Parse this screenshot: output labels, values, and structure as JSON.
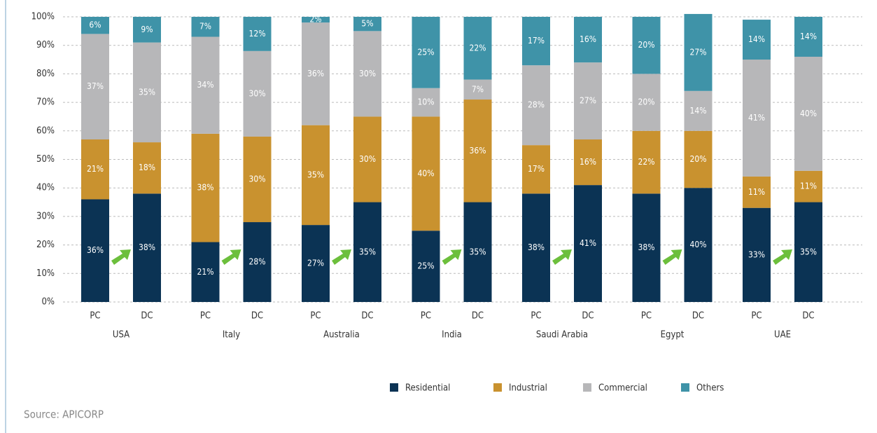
{
  "chart_data": {
    "type": "stacked_bar",
    "categories": [
      "PC",
      "DC",
      "PC",
      "DC",
      "PC",
      "DC",
      "PC",
      "DC",
      "PC",
      "DC",
      "PC",
      "DC",
      "PC",
      "DC"
    ],
    "groups": [
      "USA",
      "Italy",
      "Australia",
      "India",
      "Saudi Arabia",
      "Egypt",
      "UAE"
    ],
    "series": [
      {
        "name": "Residential",
        "color": "#0b3354",
        "values": [
          36,
          38,
          21,
          28,
          27,
          35,
          25,
          35,
          38,
          41,
          38,
          40,
          33,
          35
        ],
        "value_labels": [
          "36%",
          "38%",
          "21%",
          "28%",
          "27%",
          "35%",
          "25%",
          "35%",
          "38%",
          "41%",
          "38%",
          "40%",
          "33%",
          "35%"
        ]
      },
      {
        "name": "Industrial",
        "color": "#c9922f",
        "values": [
          21,
          18,
          38,
          30,
          35,
          30,
          40,
          36,
          17,
          16,
          22,
          20,
          11,
          11
        ],
        "value_labels": [
          "21%",
          "18%",
          "38%",
          "30%",
          "35%",
          "30%",
          "40%",
          "36%",
          "17%",
          "16%",
          "22%",
          "20%",
          "11%",
          "11%"
        ]
      },
      {
        "name": "Commercial",
        "color": "#b7b7b9",
        "values": [
          37,
          35,
          34,
          30,
          36,
          30,
          10,
          7,
          28,
          27,
          20,
          14,
          41,
          40
        ],
        "value_labels": [
          "37%",
          "35%",
          "34%",
          "30%",
          "36%",
          "30%",
          "10%",
          "7%",
          "28%",
          "27%",
          "20%",
          "14%",
          "41%",
          "40%"
        ]
      },
      {
        "name": "Others",
        "color": "#3f93a8",
        "values": [
          6,
          9,
          7,
          12,
          2,
          5,
          25,
          22,
          17,
          16,
          20,
          27,
          14,
          14
        ],
        "value_labels": [
          "6%",
          "9%",
          "7%",
          "12%",
          "2%",
          "5%",
          "25%",
          "22%",
          "17%",
          "16%",
          "20%",
          "27%",
          "14%",
          "14%"
        ]
      }
    ],
    "ylim": [
      0,
      100
    ],
    "yticks": [
      {
        "value": 0,
        "label": "0%"
      },
      {
        "value": 10,
        "label": "10%"
      },
      {
        "value": 20,
        "label": "20%"
      },
      {
        "value": 30,
        "label": "30%"
      },
      {
        "value": 40,
        "label": "40%"
      },
      {
        "value": 50,
        "label": "50%"
      },
      {
        "value": 60,
        "label": "60%"
      },
      {
        "value": 70,
        "label": "70%"
      },
      {
        "value": 80,
        "label": "80%"
      },
      {
        "value": 90,
        "label": "90%"
      },
      {
        "value": 100,
        "label": "100%"
      }
    ],
    "grid": true,
    "legend": "bottom",
    "source": "Source: APICORP"
  }
}
